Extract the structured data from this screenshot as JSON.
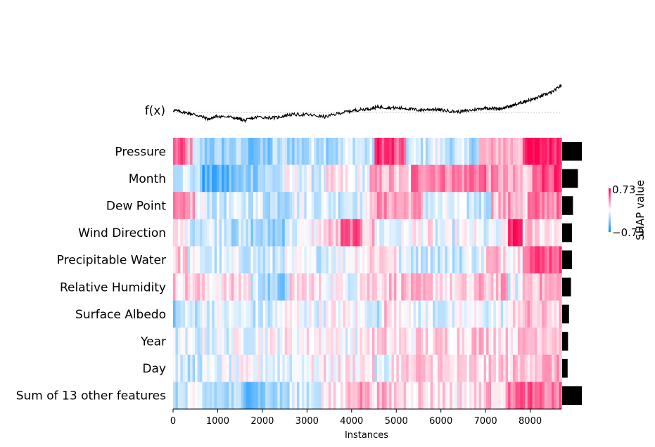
{
  "chart_data": {
    "type": "heatmap",
    "title": "",
    "xlabel": "Instances",
    "fx_label": "f(x)",
    "colorbar": {
      "label": "SHAP value",
      "max_label": "0.73",
      "min_label": "−0.73",
      "low_color": "#008bfb",
      "mid_color": "#ffffff",
      "high_color": "#ff0052"
    },
    "xlim": [
      0,
      8700
    ],
    "x_ticks": [
      "0",
      "1000",
      "2000",
      "3000",
      "4000",
      "5000",
      "6000",
      "7000",
      "8000"
    ],
    "x_tick_values": [
      0,
      1000,
      2000,
      3000,
      4000,
      5000,
      6000,
      7000,
      8000
    ],
    "features": [
      {
        "name": "Pressure",
        "importance": 1.0,
        "segments": [
          [
            0,
            0.6
          ],
          [
            250,
            0.35
          ],
          [
            400,
            -0.3
          ],
          [
            600,
            0.2
          ],
          [
            650,
            -0.4
          ],
          [
            1100,
            -0.35
          ],
          [
            1600,
            -0.5
          ],
          [
            2200,
            -0.3
          ],
          [
            2600,
            -0.35
          ],
          [
            3000,
            -0.2
          ],
          [
            3400,
            -0.3
          ],
          [
            3800,
            -0.15
          ],
          [
            4200,
            -0.25
          ],
          [
            4500,
            0.8
          ],
          [
            4900,
            0.55
          ],
          [
            5200,
            -0.2
          ],
          [
            5700,
            -0.1
          ],
          [
            6000,
            -0.25
          ],
          [
            6500,
            -0.3
          ],
          [
            6800,
            0.25
          ],
          [
            7200,
            0.35
          ],
          [
            7500,
            0.3
          ],
          [
            7800,
            0.9
          ]
        ]
      },
      {
        "name": "Month",
        "importance": 0.8,
        "segments": [
          [
            0,
            -0.15
          ],
          [
            300,
            -0.2
          ],
          [
            500,
            -0.35
          ],
          [
            600,
            -0.7
          ],
          [
            1200,
            -0.55
          ],
          [
            1550,
            -0.4
          ],
          [
            1900,
            -0.3
          ],
          [
            2400,
            -0.05
          ],
          [
            2900,
            -0.15
          ],
          [
            3400,
            0.05
          ],
          [
            3900,
            -0.05
          ],
          [
            4400,
            0.3
          ],
          [
            5000,
            0.15
          ],
          [
            5300,
            0.55
          ],
          [
            6000,
            0.5
          ],
          [
            6600,
            0.6
          ],
          [
            7000,
            0.4
          ],
          [
            7400,
            0.25
          ],
          [
            7800,
            0.1
          ],
          [
            8000,
            0.75
          ]
        ]
      },
      {
        "name": "Dew Point",
        "importance": 0.55,
        "segments": [
          [
            0,
            0.35
          ],
          [
            450,
            -0.1
          ],
          [
            800,
            -0.2
          ],
          [
            1500,
            -0.15
          ],
          [
            2000,
            -0.25
          ],
          [
            2600,
            -0.1
          ],
          [
            3200,
            -0.15
          ],
          [
            3800,
            -0.1
          ],
          [
            4400,
            0.4
          ],
          [
            5000,
            0.35
          ],
          [
            5600,
            -0.15
          ],
          [
            6400,
            -0.2
          ],
          [
            7100,
            0.3
          ],
          [
            7500,
            0.35
          ],
          [
            7800,
            0.05
          ],
          [
            7900,
            0.5
          ]
        ]
      },
      {
        "name": "Wind Direction",
        "importance": 0.5,
        "segments": [
          [
            0,
            0.05
          ],
          [
            300,
            -0.15
          ],
          [
            800,
            -0.1
          ],
          [
            1300,
            -0.3
          ],
          [
            1700,
            -0.35
          ],
          [
            2000,
            -0.4
          ],
          [
            2500,
            -0.1
          ],
          [
            3000,
            0.05
          ],
          [
            3300,
            0.2
          ],
          [
            3700,
            0.6
          ],
          [
            4200,
            0.25
          ],
          [
            4500,
            -0.1
          ],
          [
            5200,
            0.05
          ],
          [
            5800,
            -0.15
          ],
          [
            6300,
            -0.05
          ],
          [
            6800,
            -0.15
          ],
          [
            7300,
            -0.05
          ],
          [
            7500,
            0.9
          ],
          [
            7800,
            0.2
          ],
          [
            8100,
            0.15
          ]
        ]
      },
      {
        "name": "Precipitable Water",
        "importance": 0.5,
        "segments": [
          [
            0,
            0.2
          ],
          [
            300,
            -0.1
          ],
          [
            700,
            -0.2
          ],
          [
            1300,
            -0.15
          ],
          [
            1800,
            -0.25
          ],
          [
            2300,
            -0.1
          ],
          [
            2900,
            -0.15
          ],
          [
            3400,
            -0.05
          ],
          [
            3900,
            0.1
          ],
          [
            4400,
            0.2
          ],
          [
            5000,
            -0.15
          ],
          [
            5900,
            -0.2
          ],
          [
            6500,
            -0.1
          ],
          [
            7000,
            0.25
          ],
          [
            7500,
            0.15
          ],
          [
            7800,
            0.7
          ]
        ]
      },
      {
        "name": "Relative Humidity",
        "importance": 0.45,
        "segments": [
          [
            0,
            0.2
          ],
          [
            600,
            0.1
          ],
          [
            1200,
            0.15
          ],
          [
            1700,
            -0.2
          ],
          [
            2100,
            -0.45
          ],
          [
            2600,
            0.15
          ],
          [
            3100,
            0.05
          ],
          [
            3700,
            -0.05
          ],
          [
            4100,
            0.2
          ],
          [
            4600,
            0.25
          ],
          [
            5300,
            0.2
          ],
          [
            6000,
            0.1
          ],
          [
            6700,
            0.25
          ],
          [
            7300,
            0.3
          ],
          [
            7500,
            -0.1
          ],
          [
            7800,
            0.3
          ]
        ]
      },
      {
        "name": "Surface Albedo",
        "importance": 0.35,
        "segments": [
          [
            0,
            -0.4
          ],
          [
            150,
            -0.2
          ],
          [
            500,
            -0.1
          ],
          [
            1200,
            -0.15
          ],
          [
            1700,
            -0.2
          ],
          [
            2300,
            0.0
          ],
          [
            2900,
            -0.05
          ],
          [
            3500,
            0.02
          ],
          [
            4100,
            -0.05
          ],
          [
            4500,
            -0.35
          ],
          [
            4650,
            0.2
          ],
          [
            5200,
            -0.1
          ],
          [
            5800,
            -0.15
          ],
          [
            6400,
            -0.05
          ],
          [
            7000,
            -0.1
          ],
          [
            7600,
            0.25
          ],
          [
            8000,
            0.2
          ]
        ]
      },
      {
        "name": "Year",
        "importance": 0.3,
        "segments": [
          [
            0,
            -0.15
          ],
          [
            600,
            -0.1
          ],
          [
            1200,
            -0.05
          ],
          [
            1800,
            0.0
          ],
          [
            2400,
            0.05
          ],
          [
            3000,
            0.1
          ],
          [
            3600,
            -0.02
          ],
          [
            4200,
            0.15
          ],
          [
            4800,
            0.1
          ],
          [
            5400,
            0.15
          ],
          [
            6000,
            0.2
          ],
          [
            6600,
            0.25
          ],
          [
            7200,
            0.15
          ],
          [
            7800,
            0.3
          ]
        ]
      },
      {
        "name": "Day",
        "importance": 0.28,
        "segments": [
          [
            0,
            -0.1
          ],
          [
            200,
            -0.3
          ],
          [
            450,
            -0.15
          ],
          [
            900,
            -0.1
          ],
          [
            1500,
            -0.05
          ],
          [
            2100,
            -0.1
          ],
          [
            2700,
            0.0
          ],
          [
            3300,
            0.05
          ],
          [
            3900,
            0.1
          ],
          [
            4500,
            -0.2
          ],
          [
            4800,
            0.15
          ],
          [
            5400,
            0.2
          ],
          [
            6000,
            0.1
          ],
          [
            6600,
            0.15
          ],
          [
            7200,
            0.2
          ],
          [
            7800,
            0.3
          ]
        ]
      },
      {
        "name": "Sum of 13 other features",
        "importance": 1.0,
        "segments": [
          [
            0,
            -0.25
          ],
          [
            300,
            -0.15
          ],
          [
            600,
            -0.3
          ],
          [
            1000,
            -0.35
          ],
          [
            1500,
            -0.5
          ],
          [
            2000,
            -0.35
          ],
          [
            2600,
            -0.15
          ],
          [
            3300,
            0.05
          ],
          [
            3700,
            0.1
          ],
          [
            3900,
            0.4
          ],
          [
            4300,
            0.25
          ],
          [
            4800,
            0.2
          ],
          [
            5500,
            0.15
          ],
          [
            6200,
            0.1
          ],
          [
            6800,
            0.25
          ],
          [
            7300,
            0.2
          ],
          [
            7500,
            0.6
          ],
          [
            8000,
            0.5
          ]
        ]
      }
    ],
    "fx_series": {
      "x": [
        0,
        250,
        500,
        800,
        1000,
        1400,
        1600,
        1900,
        2300,
        2600,
        3000,
        3400,
        3800,
        4100,
        4400,
        4600,
        4900,
        5200,
        5500,
        5800,
        6100,
        6400,
        6700,
        7000,
        7300,
        7500,
        7700,
        7900,
        8100,
        8300,
        8500,
        8700
      ],
      "y": [
        0.05,
        0.0,
        -0.05,
        -0.15,
        -0.08,
        -0.12,
        -0.18,
        -0.1,
        -0.12,
        -0.05,
        -0.05,
        -0.1,
        0.0,
        0.05,
        0.08,
        0.12,
        0.1,
        0.09,
        0.05,
        0.07,
        0.04,
        0.01,
        0.05,
        0.1,
        0.08,
        0.12,
        0.18,
        0.25,
        0.3,
        0.38,
        0.45,
        0.6
      ],
      "baseline": 0.0
    }
  }
}
